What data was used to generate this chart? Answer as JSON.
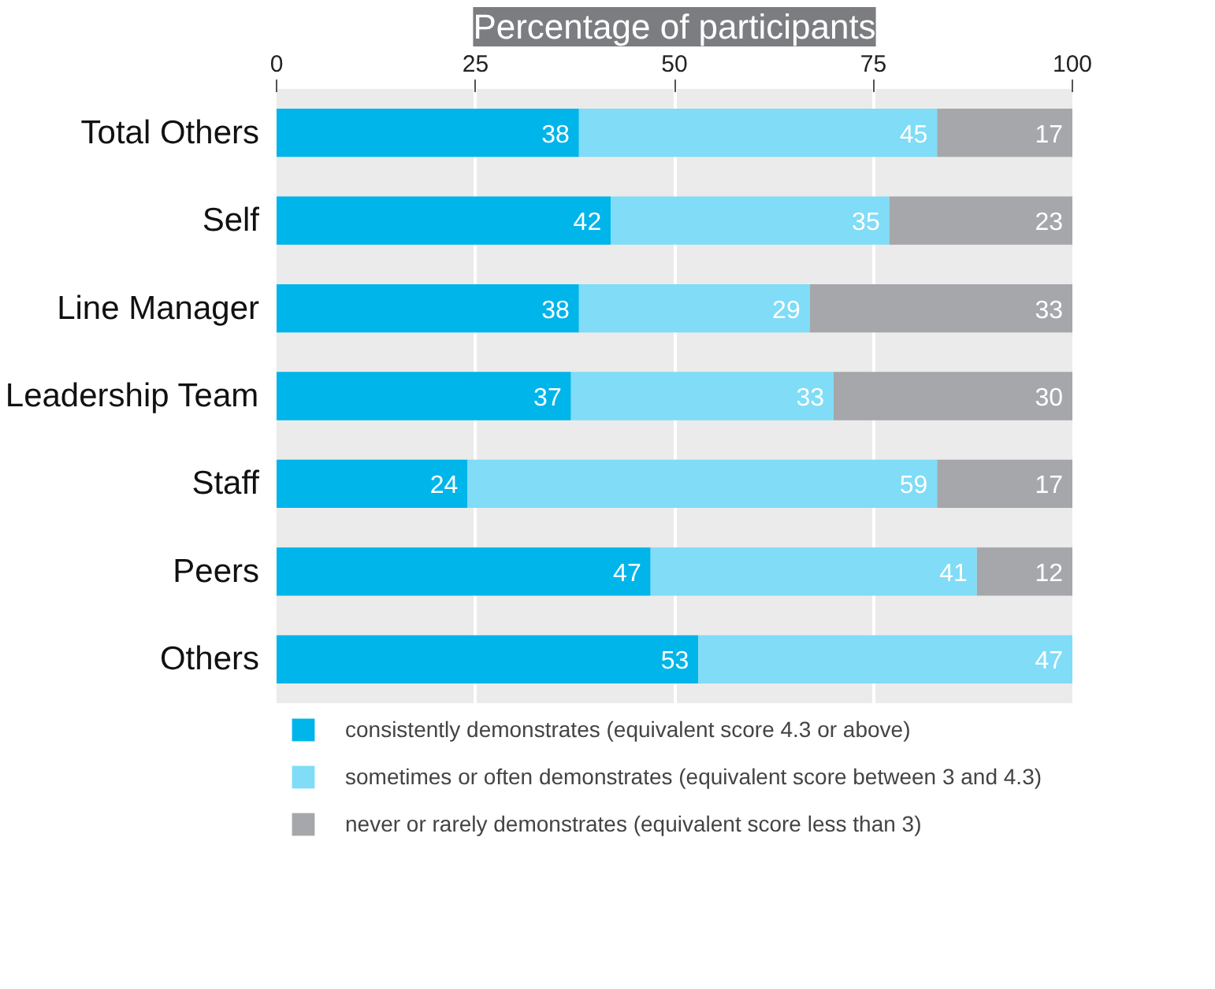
{
  "chart_data": {
    "type": "bar",
    "orientation": "horizontal",
    "stacked": true,
    "xlabel": "Percentage of participants",
    "categories": [
      "Total Others",
      "Self",
      "Line Manager",
      "Leadership Team",
      "Staff",
      "Peers",
      "Others"
    ],
    "series": [
      {
        "name": "consistently demonstrates (equivalent score 4.3 or above)",
        "color": "#00b5ea",
        "values": [
          38,
          42,
          38,
          37,
          24,
          47,
          53
        ]
      },
      {
        "name": "sometimes or often demonstrates (equivalent score between 3 and 4.3)",
        "color": "#80dcf7",
        "values": [
          45,
          35,
          29,
          33,
          59,
          41,
          47
        ]
      },
      {
        "name": "never or rarely demonstrates (equivalent score less than 3)",
        "color": "#a5a7aa",
        "values": [
          17,
          23,
          33,
          30,
          17,
          12,
          null
        ]
      }
    ],
    "xlim": [
      0,
      100
    ],
    "xticks": [
      0,
      25,
      50,
      75,
      100
    ],
    "grid": "x",
    "legend": "bottom",
    "data_labels": true
  }
}
